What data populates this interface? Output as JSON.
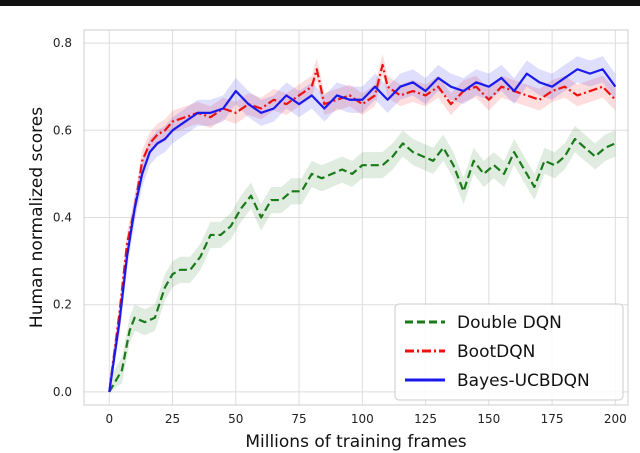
{
  "chart_data": {
    "type": "line",
    "xlabel": "Millions of training frames",
    "ylabel": "Human normalized scores",
    "xlim": [
      -10,
      205
    ],
    "ylim": [
      -0.03,
      0.83
    ],
    "xticks": [
      0,
      25,
      50,
      75,
      100,
      125,
      150,
      175,
      200
    ],
    "yticks": [
      0.0,
      0.2,
      0.4,
      0.6,
      0.8
    ],
    "ytick_labels": [
      "0.0",
      "0.2",
      "0.4",
      "0.6",
      "0.8"
    ],
    "grid": true,
    "legend_position": "lower-right",
    "series": [
      {
        "name": "Double DQN",
        "color": "#1a7a1a",
        "line_style": "dashed",
        "x": [
          0,
          5,
          8,
          10,
          14,
          18,
          22,
          25,
          28,
          32,
          36,
          40,
          44,
          48,
          52,
          56,
          60,
          64,
          68,
          72,
          76,
          80,
          84,
          88,
          92,
          96,
          100,
          104,
          108,
          112,
          116,
          120,
          124,
          128,
          132,
          136,
          140,
          144,
          148,
          152,
          156,
          160,
          164,
          168,
          172,
          176,
          180,
          184,
          188,
          192,
          196,
          200
        ],
        "y": [
          0.0,
          0.05,
          0.14,
          0.17,
          0.16,
          0.17,
          0.24,
          0.27,
          0.28,
          0.28,
          0.31,
          0.36,
          0.36,
          0.38,
          0.42,
          0.45,
          0.4,
          0.44,
          0.44,
          0.46,
          0.46,
          0.5,
          0.49,
          0.5,
          0.51,
          0.5,
          0.52,
          0.52,
          0.52,
          0.54,
          0.57,
          0.55,
          0.54,
          0.53,
          0.56,
          0.52,
          0.46,
          0.53,
          0.5,
          0.52,
          0.5,
          0.55,
          0.51,
          0.47,
          0.53,
          0.52,
          0.54,
          0.58,
          0.56,
          0.54,
          0.56,
          0.57
        ],
        "band": 0.03
      },
      {
        "name": "BootDQN",
        "color": "#ee1111",
        "line_style": "dashdot",
        "x": [
          0,
          4,
          7,
          10,
          13,
          16,
          19,
          22,
          25,
          30,
          35,
          40,
          45,
          50,
          55,
          60,
          65,
          70,
          75,
          80,
          82,
          85,
          90,
          95,
          100,
          105,
          108,
          110,
          115,
          120,
          125,
          130,
          135,
          140,
          145,
          150,
          155,
          160,
          165,
          170,
          175,
          180,
          185,
          190,
          195,
          200
        ],
        "y": [
          0.0,
          0.18,
          0.34,
          0.42,
          0.53,
          0.57,
          0.59,
          0.6,
          0.62,
          0.63,
          0.64,
          0.63,
          0.65,
          0.64,
          0.66,
          0.65,
          0.67,
          0.66,
          0.68,
          0.7,
          0.74,
          0.66,
          0.67,
          0.68,
          0.66,
          0.68,
          0.75,
          0.7,
          0.68,
          0.69,
          0.68,
          0.7,
          0.66,
          0.69,
          0.7,
          0.67,
          0.7,
          0.69,
          0.68,
          0.67,
          0.69,
          0.7,
          0.68,
          0.69,
          0.7,
          0.67
        ],
        "band": 0.025
      },
      {
        "name": "Bayes-UCBDQN",
        "color": "#1a1aee",
        "line_style": "solid",
        "x": [
          0,
          4,
          7,
          10,
          13,
          16,
          19,
          22,
          25,
          30,
          35,
          40,
          45,
          50,
          55,
          60,
          65,
          70,
          75,
          80,
          85,
          90,
          95,
          100,
          105,
          110,
          115,
          120,
          125,
          130,
          135,
          140,
          145,
          150,
          155,
          160,
          165,
          170,
          175,
          180,
          185,
          190,
          195,
          200
        ],
        "y": [
          0.0,
          0.16,
          0.31,
          0.42,
          0.5,
          0.55,
          0.57,
          0.58,
          0.6,
          0.62,
          0.64,
          0.64,
          0.65,
          0.69,
          0.66,
          0.64,
          0.65,
          0.68,
          0.66,
          0.68,
          0.65,
          0.68,
          0.67,
          0.67,
          0.7,
          0.67,
          0.7,
          0.71,
          0.69,
          0.72,
          0.7,
          0.69,
          0.71,
          0.7,
          0.72,
          0.69,
          0.73,
          0.71,
          0.7,
          0.72,
          0.74,
          0.73,
          0.74,
          0.7
        ],
        "band": 0.03
      }
    ]
  }
}
